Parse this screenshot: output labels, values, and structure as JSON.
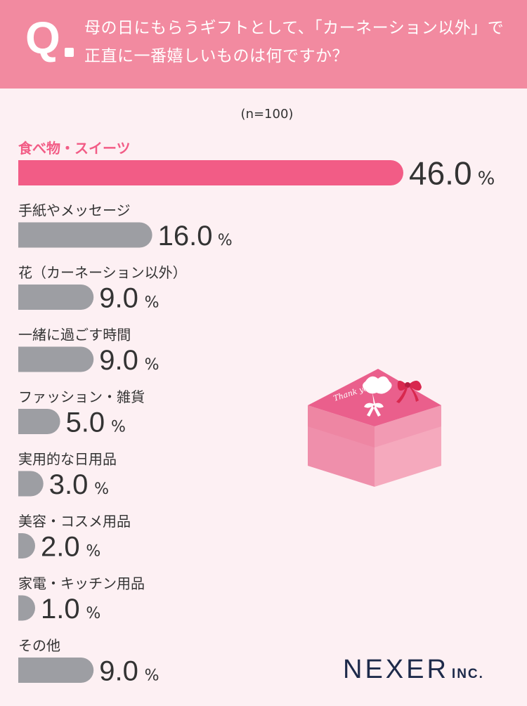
{
  "question": {
    "mark": "Q",
    "text": "母の日にもらうギフトとして、「カーネーション以外」で正直に一番嬉しいものは何ですか？"
  },
  "sample_size": "(n=100)",
  "chart_data": {
    "type": "bar",
    "orientation": "horizontal",
    "categories": [
      "食べ物・スイーツ",
      "手紙やメッセージ",
      "花（カーネーション以外）",
      "一緒に過ごす時間",
      "ファッション・雑貨",
      "実用的な日用品",
      "美容・コスメ用品",
      "家電・キッチン用品",
      "その他"
    ],
    "values": [
      46.0,
      16.0,
      9.0,
      9.0,
      5.0,
      3.0,
      2.0,
      1.0,
      9.0
    ],
    "value_labels": [
      "46.0",
      "16.0",
      "9.0",
      "9.0",
      "5.0",
      "3.0",
      "2.0",
      "1.0",
      "9.0"
    ],
    "unit": "%",
    "highlight_index": 0,
    "colors": {
      "highlight": "#f25c86",
      "default": "#9d9ea3",
      "highlight_label": "#f25c86"
    },
    "title": "",
    "xlabel": "",
    "ylabel": "",
    "xlim": [
      0,
      46
    ]
  },
  "illustration": {
    "card_text": "Thank you!"
  },
  "logo": {
    "main": "NEXER",
    "sub": "INC."
  }
}
